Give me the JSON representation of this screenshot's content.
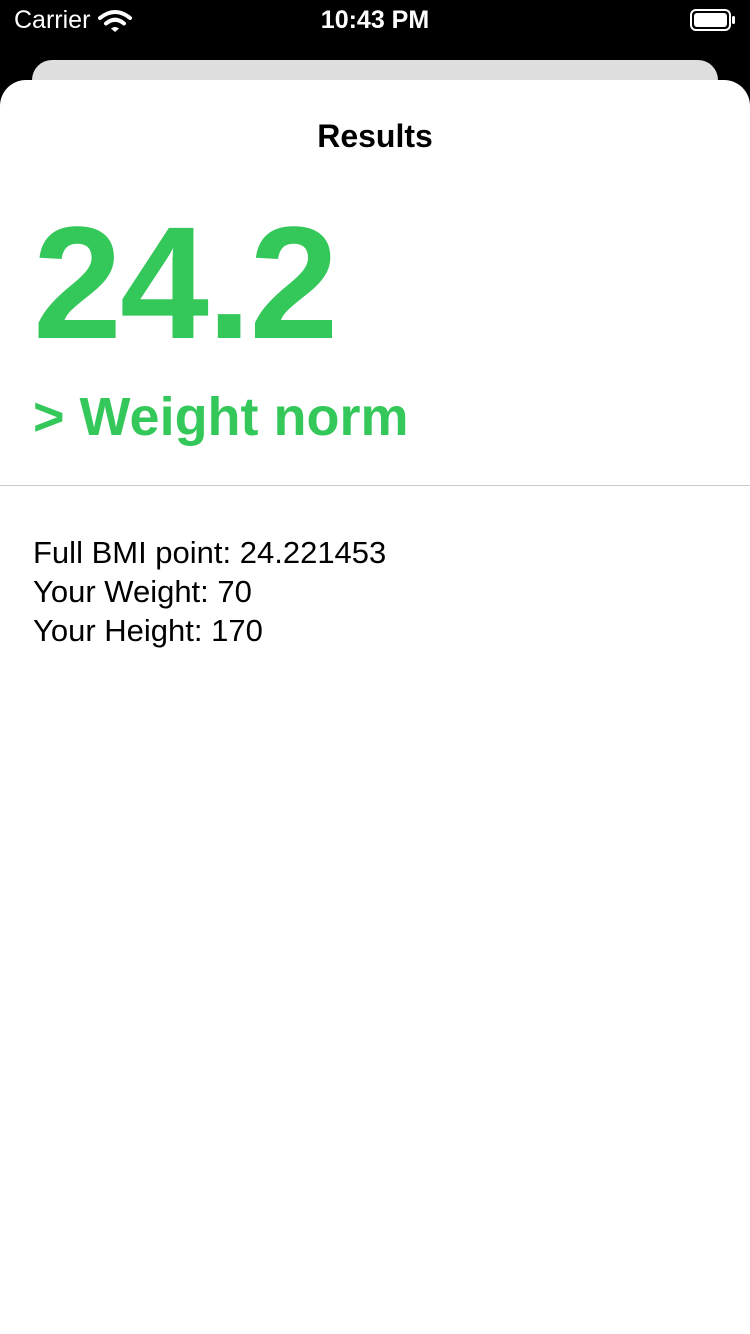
{
  "status_bar": {
    "carrier": "Carrier",
    "time": "10:43 PM",
    "icons": [
      "wifi-icon",
      "battery-icon"
    ]
  },
  "results": {
    "title": "Results",
    "bmi_value": "24.2",
    "category": "> Weight norm",
    "details": [
      "Full BMI point: 24.221453",
      "Your Weight: 70",
      "Your Height: 170"
    ]
  },
  "colors": {
    "accent": "#34c759",
    "text": "#000000",
    "background": "#ffffff",
    "status_bar_background": "#000000"
  }
}
